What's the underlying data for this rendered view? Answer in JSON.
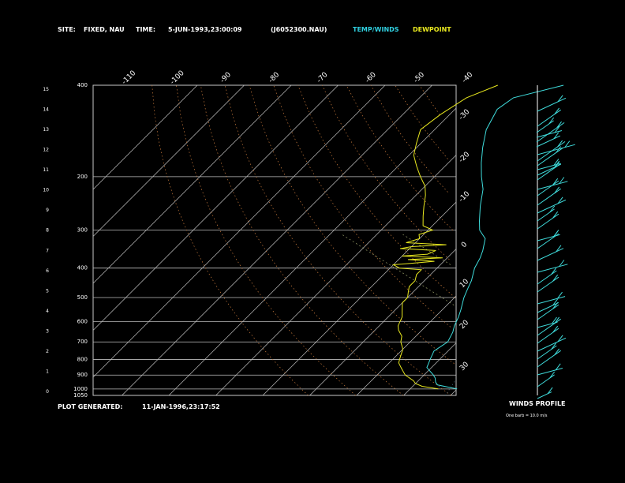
{
  "header": {
    "site_label": "SITE:",
    "site_value": "FIXED, NAU",
    "time_label": "TIME:",
    "time_value": "5-JUN-1993,23:00:09",
    "file": "(J6052300.NAU)",
    "legend_temp": "TEMP/WINDS",
    "legend_dew": "DEWPOINT"
  },
  "footer": {
    "generated_label": "PLOT GENERATED:",
    "generated_value": "11-JAN-1996,23:17:52",
    "winds_title": "WINDS PROFILE",
    "winds_note": "One barb = 10.0 m/s"
  },
  "colors": {
    "temp": "#3fdcdc",
    "dew": "#e6e61e",
    "grid": "#c8c8c8",
    "axis_text": "#ffffff",
    "legend_temp": "#30d0e0",
    "legend_dew": "#e8e820"
  },
  "chart_data": {
    "type": "line",
    "title": "",
    "pressure_levels": [
      "400",
      "200",
      "300",
      "400",
      "500",
      "600",
      "700",
      "800",
      "900",
      "1000",
      "1050"
    ],
    "height_ticks": [
      "15",
      "14",
      "13",
      "12",
      "11",
      "10",
      "9",
      "8",
      "7",
      "6",
      "5",
      "4",
      "3",
      "2",
      "1",
      "0"
    ],
    "top_temp_ticks": [
      "-110",
      "-100",
      "-90",
      "-80",
      "-70",
      "-60",
      "-50",
      "-40"
    ],
    "right_temp_ticks": [
      "-30",
      "-20",
      "-10",
      "0",
      "10",
      "20",
      "30"
    ],
    "series": [
      {
        "name": "TEMP/WINDS",
        "points": [
          [
            -40,
            1000
          ],
          [
            -45,
            970
          ],
          [
            -46,
            950
          ],
          [
            -47,
            920
          ],
          [
            -48,
            900
          ],
          [
            -51,
            850
          ],
          [
            -52,
            800
          ],
          [
            -53,
            750
          ],
          [
            -52,
            700
          ],
          [
            -53,
            650
          ],
          [
            -54,
            620
          ],
          [
            -55,
            580
          ],
          [
            -56,
            550
          ],
          [
            -58,
            500
          ],
          [
            -59,
            470
          ],
          [
            -60,
            440
          ],
          [
            -62,
            400
          ],
          [
            -63,
            370
          ],
          [
            -64,
            350
          ],
          [
            -66,
            320
          ],
          [
            -69,
            300
          ],
          [
            -71,
            280
          ],
          [
            -74,
            250
          ],
          [
            -77,
            220
          ],
          [
            -80,
            200
          ],
          [
            -83,
            180
          ],
          [
            -86,
            160
          ],
          [
            -89,
            140
          ],
          [
            -91,
            120
          ],
          [
            -90,
            110
          ],
          [
            -82,
            100
          ]
        ]
      },
      {
        "name": "DEWPOINT",
        "points": [
          [
            -44,
            1000
          ],
          [
            -48,
            980
          ],
          [
            -50,
            960
          ],
          [
            -51,
            940
          ],
          [
            -54,
            900
          ],
          [
            -56,
            860
          ],
          [
            -58,
            820
          ],
          [
            -59,
            780
          ],
          [
            -60,
            740
          ],
          [
            -62,
            700
          ],
          [
            -63,
            670
          ],
          [
            -65,
            640
          ],
          [
            -66,
            620
          ],
          [
            -67,
            580
          ],
          [
            -68,
            560
          ],
          [
            -69,
            540
          ],
          [
            -70,
            520
          ],
          [
            -70,
            500
          ],
          [
            -71,
            480
          ],
          [
            -72,
            460
          ],
          [
            -72,
            440
          ],
          [
            -73,
            420
          ],
          [
            -73,
            405
          ],
          [
            -78,
            400
          ],
          [
            -79,
            395
          ],
          [
            -80,
            390
          ],
          [
            -72,
            380
          ],
          [
            -78,
            375
          ],
          [
            -71,
            370
          ],
          [
            -80,
            365
          ],
          [
            -75,
            360
          ],
          [
            -74,
            350
          ],
          [
            -82,
            345
          ],
          [
            -80,
            340
          ],
          [
            -73,
            335
          ],
          [
            -82,
            330
          ],
          [
            -80,
            320
          ],
          [
            -81,
            310
          ],
          [
            -79,
            300
          ],
          [
            -82,
            290
          ],
          [
            -84,
            270
          ],
          [
            -86,
            250
          ],
          [
            -88,
            230
          ],
          [
            -90,
            215
          ],
          [
            -93,
            200
          ],
          [
            -96,
            185
          ],
          [
            -99,
            170
          ],
          [
            -101,
            155
          ],
          [
            -103,
            140
          ],
          [
            -102,
            125
          ],
          [
            -100,
            110
          ],
          [
            -96,
            100
          ]
        ]
      }
    ],
    "winds": [
      [
        0,
        -19,
        -12
      ],
      [
        0,
        0,
        -11
      ],
      [
        -1,
        8,
        -8
      ],
      [
        -1,
        14,
        -10
      ],
      [
        -1,
        20,
        -13
      ],
      [
        -1,
        26,
        -10
      ],
      [
        0,
        36,
        -15
      ],
      [
        0,
        44,
        -13
      ],
      [
        0,
        50,
        -12
      ],
      [
        0,
        55,
        -9
      ],
      [
        0,
        62,
        -10
      ],
      [
        0,
        68,
        -11
      ],
      [
        0,
        80,
        -12
      ],
      [
        0,
        88,
        -10
      ],
      [
        0,
        100,
        -11
      ],
      [
        0,
        110,
        -12
      ],
      [
        0,
        120,
        -8
      ],
      [
        0,
        130,
        -10
      ],
      [
        0,
        145,
        -9
      ],
      [
        0,
        155,
        -10
      ],
      [
        0,
        170,
        -11
      ],
      [
        0,
        185,
        -12
      ],
      [
        0,
        200,
        -9
      ],
      [
        0,
        210,
        -10
      ],
      [
        0,
        225,
        -11
      ],
      [
        0,
        236,
        -9
      ],
      [
        0,
        245,
        -10
      ],
      [
        0,
        255,
        -8
      ],
      [
        0,
        265,
        -11
      ],
      [
        0,
        275,
        -10
      ],
      [
        0,
        285,
        -12
      ],
      [
        0,
        295,
        -9
      ],
      [
        0,
        305,
        -11
      ],
      [
        0,
        315,
        -10
      ],
      [
        0,
        330,
        -8
      ],
      [
        0,
        345,
        -6
      ]
    ],
    "xlabel": "",
    "ylabel": ""
  }
}
